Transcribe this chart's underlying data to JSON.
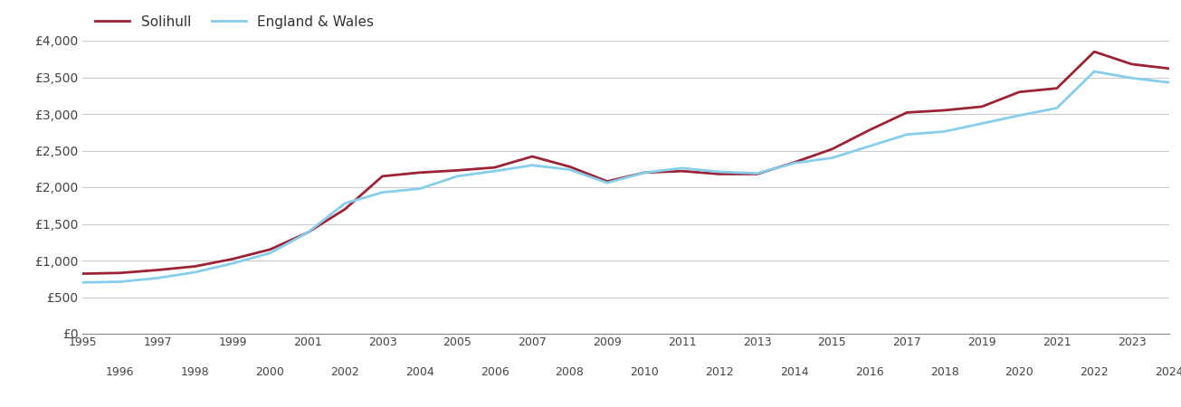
{
  "years": [
    1995,
    1996,
    1997,
    1998,
    1999,
    2000,
    2001,
    2002,
    2003,
    2004,
    2005,
    2006,
    2007,
    2008,
    2009,
    2010,
    2011,
    2012,
    2013,
    2014,
    2015,
    2016,
    2017,
    2018,
    2019,
    2020,
    2021,
    2022,
    2023,
    2024
  ],
  "solihull": [
    820,
    830,
    870,
    920,
    1020,
    1150,
    1380,
    1700,
    2150,
    2200,
    2230,
    2270,
    2420,
    2280,
    2080,
    2200,
    2220,
    2180,
    2180,
    2340,
    2520,
    2780,
    3020,
    3050,
    3100,
    3300,
    3350,
    3850,
    3680,
    3620
  ],
  "england_wales": [
    700,
    710,
    760,
    840,
    960,
    1100,
    1380,
    1780,
    1930,
    1980,
    2150,
    2220,
    2300,
    2240,
    2060,
    2200,
    2260,
    2210,
    2190,
    2330,
    2400,
    2560,
    2720,
    2760,
    2870,
    2980,
    3080,
    3580,
    3490,
    3430
  ],
  "solihull_color": "#9b2335",
  "england_wales_color": "#87ceeb",
  "background_color": "#ffffff",
  "grid_color": "#cccccc",
  "line_width": 2.0,
  "ylim": [
    0,
    4000
  ],
  "yticks": [
    0,
    500,
    1000,
    1500,
    2000,
    2500,
    3000,
    3500,
    4000
  ],
  "ytick_labels": [
    "£0",
    "£500",
    "£1,000",
    "£1,500",
    "£2,000",
    "£2,500",
    "£3,000",
    "£3,500",
    "£4,000"
  ],
  "legend_solihull": "Solihull",
  "legend_england_wales": "England & Wales",
  "odd_years": [
    1995,
    1997,
    1999,
    2001,
    2003,
    2005,
    2007,
    2009,
    2011,
    2013,
    2015,
    2017,
    2019,
    2021,
    2023
  ],
  "even_years": [
    1996,
    1998,
    2000,
    2002,
    2004,
    2006,
    2008,
    2010,
    2012,
    2014,
    2016,
    2018,
    2020,
    2022,
    2024
  ]
}
